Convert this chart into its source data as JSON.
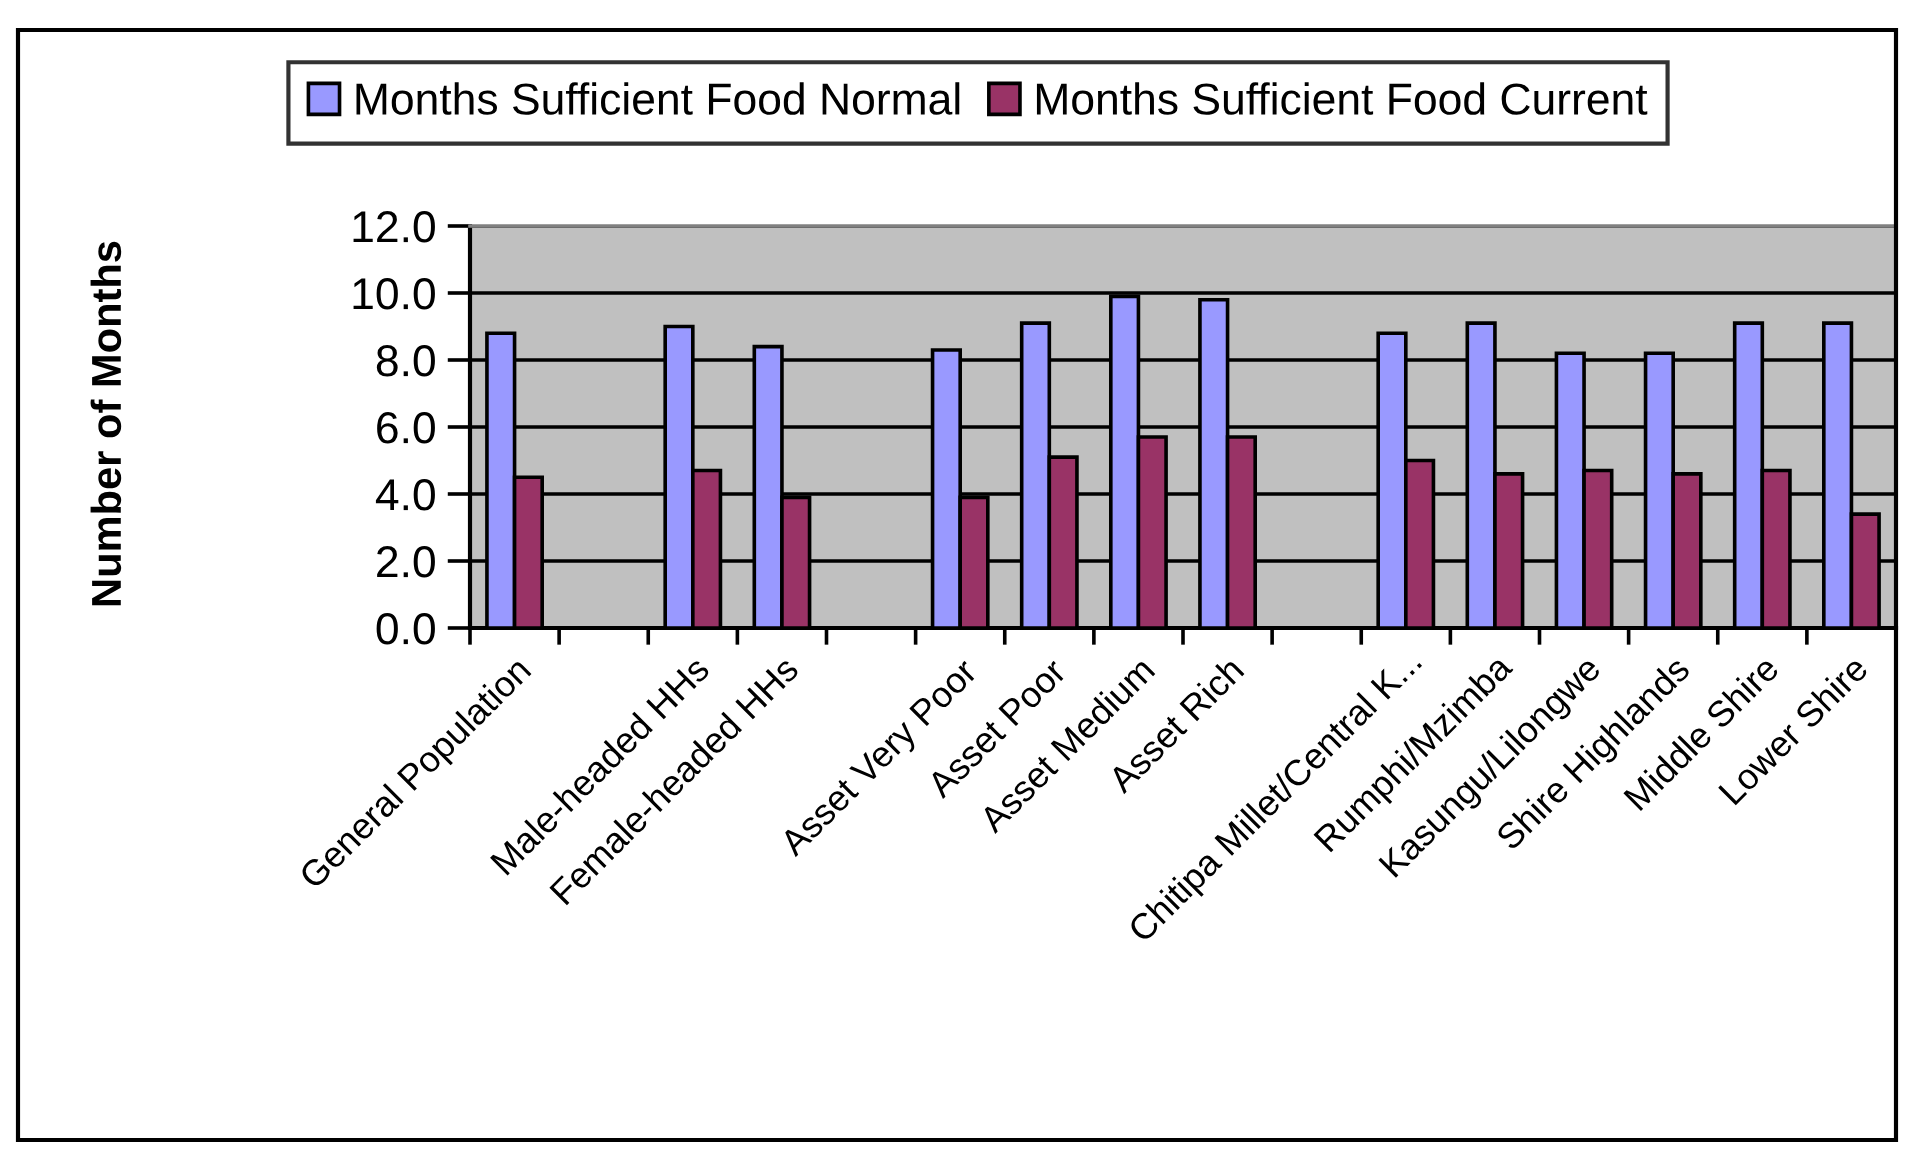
{
  "chart_data": {
    "type": "bar",
    "categories": [
      "General Population",
      null,
      "Male-headed HHs",
      "Female-headed HHs",
      null,
      "Asset Very Poor",
      "Asset Poor",
      "Asset Medium",
      "Asset Rich",
      null,
      "Chitipa Millet/Central K...",
      "Rumphi/Mzimba",
      "Kasungu/Lilongwe",
      "Shire Highlands",
      "Middle Shire",
      "Lower Shire"
    ],
    "series": [
      {
        "name": "Months Sufficient Food Normal",
        "color": "#9999ff",
        "values": [
          8.8,
          null,
          9.0,
          8.4,
          null,
          8.3,
          9.1,
          9.9,
          9.8,
          null,
          8.8,
          9.1,
          8.2,
          8.2,
          9.1,
          9.1
        ]
      },
      {
        "name": "Months Sufficient Food Current",
        "color": "#993366",
        "values": [
          4.5,
          null,
          4.7,
          3.9,
          null,
          3.9,
          5.1,
          5.7,
          5.7,
          null,
          5.0,
          4.6,
          4.7,
          4.6,
          4.7,
          3.4
        ]
      }
    ],
    "ylabel": "Number of Months",
    "ylim": [
      0,
      12
    ],
    "yticks": [
      {
        "value": 0,
        "label": "0.0"
      },
      {
        "value": 2,
        "label": "2.0"
      },
      {
        "value": 4,
        "label": "4.0"
      },
      {
        "value": 6,
        "label": "6.0"
      },
      {
        "value": 8,
        "label": "8.0"
      },
      {
        "value": 10,
        "label": "10.0"
      },
      {
        "value": 12,
        "label": "12.0"
      }
    ],
    "grid": "y",
    "legend": "top"
  }
}
